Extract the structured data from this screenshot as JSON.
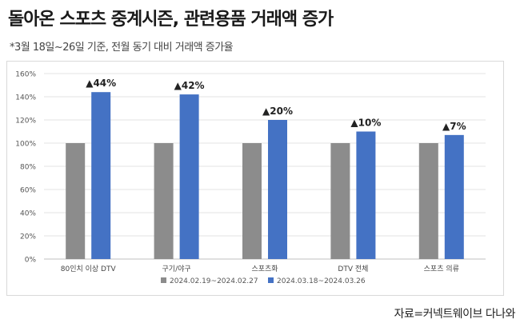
{
  "title": "돌아온 스포츠 중계시즌, 관련용품 거래액 증가",
  "subtitle": "*3월 18일~26일 기준, 전월 동기 대비 거래액 증가율",
  "source": "자료=커넥트웨이브 다나와",
  "chart_data": {
    "type": "bar",
    "categories": [
      "80인치 이상 DTV",
      "구기/야구",
      "스포츠화",
      "DTV 전체",
      "스포츠 의류"
    ],
    "series": [
      {
        "name": "2024.02.19~2024.02.27",
        "color": "#8c8c8c",
        "values": [
          100,
          100,
          100,
          100,
          100
        ]
      },
      {
        "name": "2024.03.18~2024.03.26",
        "color": "#4472c4",
        "values": [
          144,
          142,
          120,
          110,
          107
        ]
      }
    ],
    "annotations": [
      "▲44%",
      "▲42%",
      "▲20%",
      "▲10%",
      "▲7%"
    ],
    "yticks": [
      "0%",
      "20%",
      "40%",
      "60%",
      "80%",
      "100%",
      "120%",
      "140%",
      "160%"
    ],
    "ylim": [
      0,
      160
    ],
    "grid": true,
    "legend_position": "bottom"
  }
}
